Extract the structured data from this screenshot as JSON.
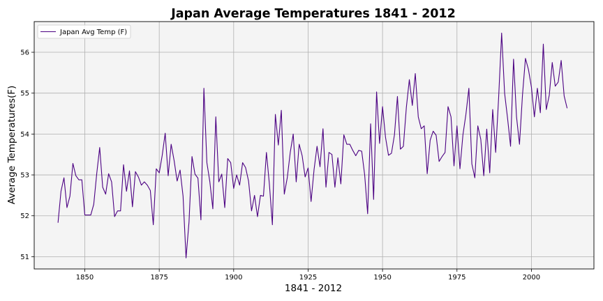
{
  "chart_data": {
    "type": "line",
    "title": "Japan Average Temperatures 1841 - 2012",
    "xlabel": "1841 - 2012",
    "ylabel": "Average Temperatures(F)",
    "xlim": [
      1833,
      2021
    ],
    "ylim": [
      50.7,
      56.75
    ],
    "xticks": [
      1850,
      1875,
      1900,
      1925,
      1950,
      1975,
      2000
    ],
    "yticks": [
      51,
      52,
      53,
      54,
      55,
      56
    ],
    "grid": true,
    "legend": "top-left",
    "colors": {
      "line": "#4b0082",
      "plot_bg": "#f4f4f4",
      "grid": "#b0b0b0"
    },
    "series": [
      {
        "name": "Japan Avg Temp (F)",
        "x": [
          1841,
          1842,
          1843,
          1844,
          1845,
          1846,
          1847,
          1848,
          1849,
          1850,
          1851,
          1852,
          1853,
          1854,
          1855,
          1856,
          1857,
          1858,
          1859,
          1860,
          1861,
          1862,
          1863,
          1864,
          1865,
          1866,
          1867,
          1868,
          1869,
          1870,
          1871,
          1872,
          1873,
          1874,
          1875,
          1876,
          1877,
          1878,
          1879,
          1880,
          1881,
          1882,
          1883,
          1884,
          1885,
          1886,
          1887,
          1888,
          1889,
          1890,
          1891,
          1892,
          1893,
          1894,
          1895,
          1896,
          1897,
          1898,
          1899,
          1900,
          1901,
          1902,
          1903,
          1904,
          1905,
          1906,
          1907,
          1908,
          1909,
          1910,
          1911,
          1912,
          1913,
          1914,
          1915,
          1916,
          1917,
          1918,
          1919,
          1920,
          1921,
          1922,
          1923,
          1924,
          1925,
          1926,
          1927,
          1928,
          1929,
          1930,
          1931,
          1932,
          1933,
          1934,
          1935,
          1936,
          1937,
          1938,
          1939,
          1940,
          1941,
          1942,
          1943,
          1944,
          1945,
          1946,
          1947,
          1948,
          1949,
          1950,
          1951,
          1952,
          1953,
          1954,
          1955,
          1956,
          1957,
          1958,
          1959,
          1960,
          1961,
          1962,
          1963,
          1964,
          1965,
          1966,
          1967,
          1968,
          1969,
          1970,
          1971,
          1972,
          1973,
          1974,
          1975,
          1976,
          1977,
          1978,
          1979,
          1980,
          1981,
          1982,
          1983,
          1984,
          1985,
          1986,
          1987,
          1988,
          1989,
          1990,
          1991,
          1992,
          1993,
          1994,
          1995,
          1996,
          1997,
          1998,
          1999,
          2000,
          2001,
          2002,
          2003,
          2004,
          2005,
          2006,
          2007,
          2008,
          2009,
          2010,
          2011,
          2012
        ],
        "values": [
          51.83,
          52.6,
          52.93,
          52.2,
          52.48,
          53.28,
          52.98,
          52.88,
          52.88,
          52.02,
          52.02,
          52.02,
          52.28,
          53.03,
          53.67,
          52.7,
          52.53,
          53.03,
          52.83,
          51.98,
          52.12,
          52.12,
          53.25,
          52.6,
          53.1,
          52.22,
          53.08,
          52.95,
          52.75,
          52.83,
          52.75,
          52.62,
          51.78,
          53.15,
          53.05,
          53.48,
          54.02,
          52.98,
          53.75,
          53.35,
          52.85,
          53.12,
          52.48,
          50.97,
          51.85,
          53.45,
          53.02,
          52.92,
          51.9,
          55.12,
          53.3,
          52.83,
          52.17,
          54.42,
          52.83,
          53.02,
          52.2,
          53.4,
          53.3,
          52.67,
          53.0,
          52.75,
          53.3,
          53.18,
          52.85,
          52.12,
          52.5,
          51.98,
          52.5,
          52.48,
          53.55,
          52.77,
          51.78,
          54.48,
          53.73,
          54.58,
          52.53,
          52.93,
          53.55,
          54.0,
          52.83,
          53.75,
          53.47,
          52.95,
          53.17,
          52.35,
          53.13,
          53.7,
          53.2,
          54.13,
          52.7,
          53.55,
          53.5,
          52.7,
          53.42,
          52.78,
          53.98,
          53.75,
          53.75,
          53.6,
          53.47,
          53.6,
          53.58,
          53.0,
          52.05,
          54.25,
          52.4,
          55.03,
          53.77,
          54.67,
          53.92,
          53.48,
          53.53,
          53.98,
          54.92,
          53.63,
          53.7,
          54.65,
          55.33,
          54.7,
          55.48,
          54.42,
          54.13,
          54.2,
          53.03,
          53.85,
          54.07,
          53.97,
          53.33,
          53.45,
          53.55,
          54.67,
          54.42,
          53.22,
          54.2,
          53.15,
          53.98,
          54.48,
          55.12,
          53.27,
          52.93,
          54.2,
          53.87,
          52.98,
          54.12,
          53.05,
          54.6,
          53.55,
          54.9,
          56.47,
          55.0,
          54.38,
          53.7,
          55.83,
          54.42,
          53.75,
          54.95,
          55.85,
          55.58,
          55.15,
          54.42,
          55.12,
          54.52,
          56.2,
          54.6,
          54.95,
          55.75,
          55.17,
          55.27,
          55.8,
          54.93,
          54.63
        ]
      }
    ]
  }
}
